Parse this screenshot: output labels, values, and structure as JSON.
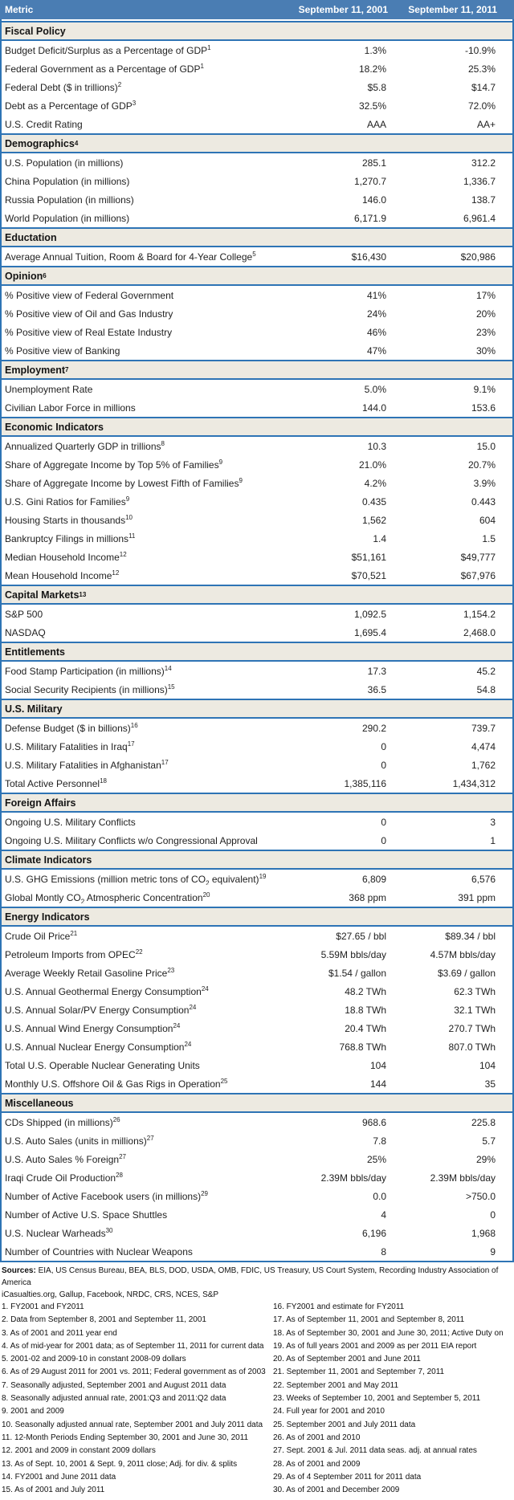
{
  "colors": {
    "header_bg": "#4A7DB3",
    "border": "#2E74B5",
    "section_bg": "#EDEAE1"
  },
  "header": {
    "metric": "Metric",
    "col2001": "September 11, 2001",
    "col2011": "September 11, 2011"
  },
  "sections": [
    {
      "title": "Fiscal Policy",
      "sup": "",
      "rows": [
        {
          "label": "Budget Deficit/Surplus as a Percentage of GDP",
          "sup": "1",
          "v2001": "1.3%",
          "v2011": "-10.9%"
        },
        {
          "label": "Federal Government as a Percentage of GDP",
          "sup": "1",
          "v2001": "18.2%",
          "v2011": "25.3%"
        },
        {
          "label": "Federal Debt ($ in trillions)",
          "sup": "2",
          "v2001": "$5.8",
          "v2011": "$14.7"
        },
        {
          "label": "Debt as a Percentage of GDP",
          "sup": "3",
          "v2001": "32.5%",
          "v2011": "72.0%"
        },
        {
          "label": "U.S. Credit Rating",
          "sup": "",
          "v2001": "AAA",
          "v2011": "AA+"
        }
      ]
    },
    {
      "title": "Demographics",
      "sup": "4",
      "rows": [
        {
          "label": "U.S. Population (in millions)",
          "sup": "",
          "v2001": "285.1",
          "v2011": "312.2"
        },
        {
          "label": "China Population (in millions)",
          "sup": "",
          "v2001": "1,270.7",
          "v2011": "1,336.7"
        },
        {
          "label": "Russia Population (in millions)",
          "sup": "",
          "v2001": "146.0",
          "v2011": "138.7"
        },
        {
          "label": "World Population (in millions)",
          "sup": "",
          "v2001": "6,171.9",
          "v2011": "6,961.4"
        }
      ]
    },
    {
      "title": "Eductation",
      "sup": "",
      "rows": [
        {
          "label": "Average Annual Tuition, Room & Board for 4-Year College",
          "sup": "5",
          "v2001": "$16,430",
          "v2011": "$20,986"
        }
      ]
    },
    {
      "title": "Opinion",
      "sup": "6",
      "rows": [
        {
          "label": "% Positive view of Federal Government",
          "sup": "",
          "v2001": "41%",
          "v2011": "17%"
        },
        {
          "label": "% Positive view of Oil and Gas Industry",
          "sup": "",
          "v2001": "24%",
          "v2011": "20%"
        },
        {
          "label": "% Positive view of Real Estate Industry",
          "sup": "",
          "v2001": "46%",
          "v2011": "23%"
        },
        {
          "label": "% Positive view of Banking",
          "sup": "",
          "v2001": "47%",
          "v2011": "30%"
        }
      ]
    },
    {
      "title": "Employment",
      "sup": "7",
      "rows": [
        {
          "label": "Unemployment Rate",
          "sup": "",
          "v2001": "5.0%",
          "v2011": "9.1%"
        },
        {
          "label": "Civilian Labor Force in millions",
          "sup": "",
          "v2001": "144.0",
          "v2011": "153.6"
        }
      ]
    },
    {
      "title": "Economic Indicators",
      "sup": "",
      "rows": [
        {
          "label": "Annualized Quarterly GDP in trillions",
          "sup": "8",
          "v2001": "10.3",
          "v2011": "15.0"
        },
        {
          "label": "Share of Aggregate Income by Top 5% of Families",
          "sup": "9",
          "v2001": "21.0%",
          "v2011": "20.7%"
        },
        {
          "label": "Share of Aggregate Income by Lowest Fifth of Families",
          "sup": "9",
          "v2001": "4.2%",
          "v2011": "3.9%"
        },
        {
          "label": "U.S. Gini Ratios for Families",
          "sup": "9",
          "v2001": "0.435",
          "v2011": "0.443"
        },
        {
          "label": "Housing Starts in thousands",
          "sup": "10",
          "v2001": "1,562",
          "v2011": "604"
        },
        {
          "label": "Bankruptcy Filings in millions",
          "sup": "11",
          "v2001": "1.4",
          "v2011": "1.5"
        },
        {
          "label": "Median Household Income",
          "sup": "12",
          "v2001": "$51,161",
          "v2011": "$49,777"
        },
        {
          "label": "Mean Household Income",
          "sup": "12",
          "v2001": "$70,521",
          "v2011": "$67,976"
        }
      ]
    },
    {
      "title": "Capital Markets",
      "sup": "13",
      "rows": [
        {
          "label": "S&P 500",
          "sup": "",
          "v2001": "1,092.5",
          "v2011": "1,154.2"
        },
        {
          "label": "NASDAQ",
          "sup": "",
          "v2001": "1,695.4",
          "v2011": "2,468.0"
        }
      ]
    },
    {
      "title": "Entitlements",
      "sup": "",
      "rows": [
        {
          "label": "Food Stamp Participation (in millions)",
          "sup": "14",
          "v2001": "17.3",
          "v2011": "45.2"
        },
        {
          "label": "Social Security Recipients (in millions)",
          "sup": "15",
          "v2001": "36.5",
          "v2011": "54.8"
        }
      ]
    },
    {
      "title": "U.S. Military",
      "sup": "",
      "rows": [
        {
          "label": "Defense Budget ($ in billions)",
          "sup": "16",
          "v2001": "290.2",
          "v2011": "739.7"
        },
        {
          "label": "U.S. Military Fatalities in Iraq",
          "sup": "17",
          "v2001": "0",
          "v2011": "4,474"
        },
        {
          "label": "U.S. Military Fatalities in Afghanistan",
          "sup": "17",
          "v2001": "0",
          "v2011": "1,762"
        },
        {
          "label": "Total Active Personnel",
          "sup": "18",
          "v2001": "1,385,116",
          "v2011": "1,434,312"
        }
      ]
    },
    {
      "title": "Foreign Affairs",
      "sup": "",
      "rows": [
        {
          "label": "Ongoing U.S. Military Conflicts",
          "sup": "",
          "v2001": "0",
          "v2011": "3"
        },
        {
          "label": "Ongoing U.S. Military Conflicts w/o Congressional Approval",
          "sup": "",
          "v2001": "0",
          "v2011": "1"
        }
      ]
    },
    {
      "title": "Climate Indicators",
      "sup": "",
      "rows": [
        {
          "label": "U.S. GHG Emissions (million metric tons of CO~2~ equivalent)",
          "sup": "19",
          "v2001": "6,809",
          "v2011": "6,576"
        },
        {
          "label": "Global Montly CO~2~ Atmospheric Concentration",
          "sup": "20",
          "v2001": "368 ppm",
          "v2011": "391 ppm"
        }
      ]
    },
    {
      "title": "Energy Indicators",
      "sup": "",
      "rows": [
        {
          "label": "Crude Oil Price",
          "sup": "21",
          "v2001": "$27.65 / bbl",
          "v2011": "$89.34 / bbl"
        },
        {
          "label": "Petroleum Imports from OPEC",
          "sup": "22",
          "v2001": "5.59M bbls/day",
          "v2011": "4.57M bbls/day"
        },
        {
          "label": "Average Weekly Retail Gasoline Price",
          "sup": "23",
          "v2001": "$1.54 / gallon",
          "v2011": "$3.69 / gallon"
        },
        {
          "label": "U.S. Annual Geothermal Energy Consumption",
          "sup": "24",
          "v2001": "48.2 TWh",
          "v2011": "62.3 TWh"
        },
        {
          "label": "U.S. Annual Solar/PV Energy Consumption",
          "sup": "24",
          "v2001": "18.8 TWh",
          "v2011": "32.1 TWh"
        },
        {
          "label": "U.S. Annual Wind Energy Consumption",
          "sup": "24",
          "v2001": "20.4 TWh",
          "v2011": "270.7 TWh"
        },
        {
          "label": "U.S. Annual Nuclear Energy Consumption",
          "sup": "24",
          "v2001": "768.8 TWh",
          "v2011": "807.0 TWh"
        },
        {
          "label": "Total U.S. Operable Nuclear Generating Units",
          "sup": "",
          "v2001": "104",
          "v2011": "104"
        },
        {
          "label": "Monthly U.S. Offshore Oil & Gas Rigs in Operation",
          "sup": "25",
          "v2001": "144",
          "v2011": "35"
        }
      ]
    },
    {
      "title": "Miscellaneous",
      "sup": "",
      "rows": [
        {
          "label": "CDs Shipped (in millions)",
          "sup": "26",
          "v2001": "968.6",
          "v2011": "225.8"
        },
        {
          "label": "U.S. Auto Sales (units in millions)",
          "sup": "27",
          "v2001": "7.8",
          "v2011": "5.7"
        },
        {
          "label": "U.S. Auto Sales % Foreign",
          "sup": "27",
          "v2001": "25%",
          "v2011": "29%"
        },
        {
          "label": "Iraqi Crude Oil Production",
          "sup": "28",
          "v2001": "2.39M bbls/day",
          "v2011": "2.39M bbls/day"
        },
        {
          "label": "Number of Active Facebook users (in millions)",
          "sup": "29",
          "v2001": "0.0",
          "v2011": ">750.0"
        },
        {
          "label": "Number of Active U.S. Space Shuttles",
          "sup": "",
          "v2001": "4",
          "v2011": "0"
        },
        {
          "label": "U.S. Nuclear Warheads",
          "sup": "30",
          "v2001": "6,196",
          "v2011": "1,968"
        },
        {
          "label": "Number of Countries with Nuclear Weapons",
          "sup": "",
          "v2001": "8",
          "v2011": "9"
        }
      ]
    }
  ],
  "footer": {
    "sources_label": "Sources:",
    "sources_line1": "EIA, US Census Bureau, BEA, BLS, DOD, USDA, OMB, FDIC, US Treasury, US Court System, Recording Industry Association of America",
    "sources_line2": "iCasualties.org, Gallup, Facebook, NRDC, CRS, NCES, S&P",
    "footnotes_left": [
      "1.  FY2001 and FY2011",
      "2.  Data from September 8, 2001 and September 11, 2001",
      "3.  As of 2001 and 2011 year end",
      "4.  As of mid-year for 2001 data; as of September 11, 2011 for current data",
      "5.  2001-02 and 2009-10 in constant 2008-09 dollars",
      "6.  As of 29 August 2011 for 2001 vs. 2011; Federal government as of 2003",
      "7.  Seasonally adjusted, September 2001 and August 2011 data",
      "8.  Seasonally adjusted annual rate, 2001:Q3 and 2011:Q2 data",
      "9.  2001 and 2009",
      "10. Seasonally adjusted annual rate, September 2001 and July 2011 data",
      "11. 12-Month Periods Ending September 30, 2001 and June 30, 2011",
      "12. 2001 and 2009 in constant 2009 dollars",
      "13.  As of Sept. 10, 2001 & Sept. 9, 2011 close; Adj. for div. & splits",
      "14. FY2001 and June 2011 data",
      "15. As of 2001 and July 2011"
    ],
    "footnotes_right": [
      "16.  FY2001 and estimate for FY2011",
      "17. As of September 11, 2001 and September 8, 2011",
      "18. As of September 30, 2001 and June 30, 2011; Active Duty on",
      "19. As of full years 2001 and 2009 as per 2011 EIA report",
      "20. As of September 2001 and June 2011",
      "21. September 11, 2001 and September 7, 2011",
      "22. September 2001 and May 2011",
      "23. Weeks of September 10, 2001 and September 5, 2011",
      "24. Full year for 2001 and 2010",
      "25. September 2001 and July 2011 data",
      "26.  As of 2001 and 2010",
      "27. Sept. 2001 & Jul. 2011 data seas. adj. at annual rates",
      "28. As of 2001 and 2009",
      "29. As of 4 September 2011 for 2011 data",
      "30. As of 2001 and December 2009"
    ]
  }
}
